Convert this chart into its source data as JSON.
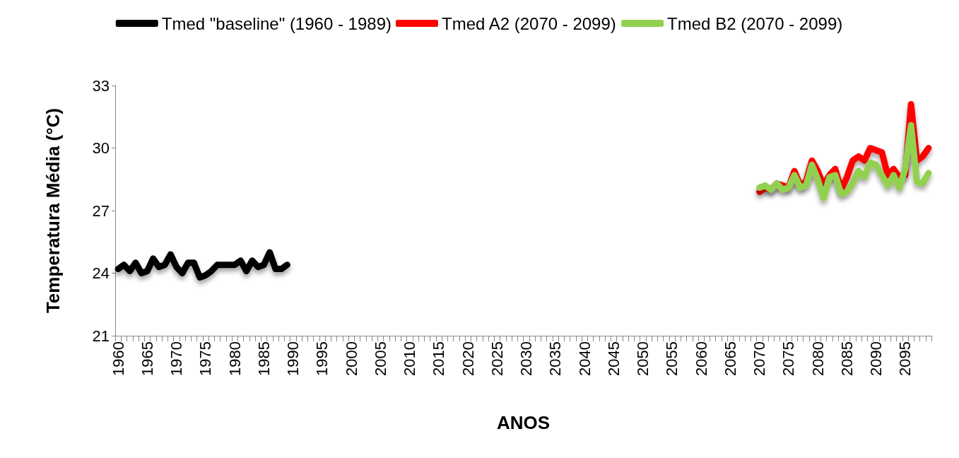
{
  "chart_data": {
    "type": "line",
    "xlabel": "ANOS",
    "ylabel": "Temperatura Média (°C)",
    "legend": "top",
    "grid": false,
    "marker": "none",
    "line_style": "solid",
    "ylim": [
      21,
      33
    ],
    "yticks": [
      21,
      24,
      27,
      30,
      33
    ],
    "categories": [
      "1960",
      null,
      null,
      null,
      null,
      "1965",
      null,
      null,
      null,
      null,
      "1970",
      null,
      null,
      null,
      null,
      "1975",
      null,
      null,
      null,
      null,
      "1980",
      null,
      null,
      null,
      null,
      "1985",
      null,
      null,
      null,
      null,
      "1990",
      null,
      null,
      null,
      null,
      "1995",
      null,
      null,
      null,
      null,
      "2000",
      null,
      null,
      null,
      null,
      "2005",
      null,
      null,
      null,
      null,
      "2010",
      null,
      null,
      null,
      null,
      "2015",
      null,
      null,
      null,
      null,
      "2020",
      null,
      null,
      null,
      null,
      "2025",
      null,
      null,
      null,
      null,
      "2030",
      null,
      null,
      null,
      null,
      "2035",
      null,
      null,
      null,
      null,
      "2040",
      null,
      null,
      null,
      null,
      "2045",
      null,
      null,
      null,
      null,
      "2050",
      null,
      null,
      null,
      null,
      "2055",
      null,
      null,
      null,
      null,
      "2060",
      null,
      null,
      null,
      null,
      "2065",
      null,
      null,
      null,
      null,
      "2070",
      null,
      null,
      null,
      null,
      "2075",
      null,
      null,
      null,
      null,
      "2080",
      null,
      null,
      null,
      null,
      "2085",
      null,
      null,
      null,
      null,
      "2090",
      null,
      null,
      null,
      null,
      "2095",
      null,
      null,
      null,
      null
    ],
    "series": [
      {
        "name": "Tmed \"baseline\" (1960 - 1989)",
        "color": "#000000",
        "values": [
          24.2,
          24.4,
          24.1,
          24.5,
          24.0,
          24.1,
          24.7,
          24.3,
          24.4,
          24.9,
          24.3,
          24.0,
          24.5,
          24.5,
          23.8,
          23.9,
          24.1,
          24.4,
          24.4,
          24.4,
          24.4,
          24.6,
          24.1,
          24.6,
          24.3,
          24.4,
          25.0,
          24.2,
          24.2,
          24.4,
          null,
          null,
          null,
          null,
          null,
          null,
          null,
          null,
          null,
          null,
          null,
          null,
          null,
          null,
          null,
          null,
          null,
          null,
          null,
          null,
          null,
          null,
          null,
          null,
          null,
          null,
          null,
          null,
          null,
          null,
          null,
          null,
          null,
          null,
          null,
          null,
          null,
          null,
          null,
          null,
          null,
          null,
          null,
          null,
          null,
          null,
          null,
          null,
          null,
          null,
          null,
          null,
          null,
          null,
          null,
          null,
          null,
          null,
          null,
          null,
          null,
          null,
          null,
          null,
          null,
          null,
          null,
          null,
          null,
          null,
          null,
          null,
          null,
          null,
          null,
          null,
          null,
          null,
          null,
          null,
          null,
          null,
          null,
          null,
          null,
          null,
          null,
          null,
          null,
          null,
          null,
          null,
          null,
          null,
          null,
          null,
          null,
          null,
          null,
          null,
          null,
          null,
          null,
          null,
          null,
          null,
          null,
          null,
          null,
          null
        ]
      },
      {
        "name": "Tmed A2 (2070 - 2099)",
        "color": "#ff0000",
        "values": [
          null,
          null,
          null,
          null,
          null,
          null,
          null,
          null,
          null,
          null,
          null,
          null,
          null,
          null,
          null,
          null,
          null,
          null,
          null,
          null,
          null,
          null,
          null,
          null,
          null,
          null,
          null,
          null,
          null,
          null,
          null,
          null,
          null,
          null,
          null,
          null,
          null,
          null,
          null,
          null,
          null,
          null,
          null,
          null,
          null,
          null,
          null,
          null,
          null,
          null,
          null,
          null,
          null,
          null,
          null,
          null,
          null,
          null,
          null,
          null,
          null,
          null,
          null,
          null,
          null,
          null,
          null,
          null,
          null,
          null,
          null,
          null,
          null,
          null,
          null,
          null,
          null,
          null,
          null,
          null,
          null,
          null,
          null,
          null,
          null,
          null,
          null,
          null,
          null,
          null,
          null,
          null,
          null,
          null,
          null,
          null,
          null,
          null,
          null,
          null,
          null,
          null,
          null,
          null,
          null,
          null,
          null,
          null,
          null,
          null,
          27.9,
          28.1,
          28.0,
          28.3,
          28.2,
          28.1,
          28.9,
          28.2,
          28.4,
          29.4,
          28.9,
          28.2,
          28.7,
          29.0,
          28.0,
          28.6,
          29.4,
          29.6,
          29.4,
          30.0,
          29.9,
          29.8,
          28.7,
          29.0,
          28.6,
          28.7,
          32.1,
          29.4,
          29.6,
          30.0
        ]
      },
      {
        "name": "Tmed B2 (2070 - 2099)",
        "color": "#92d050",
        "values": [
          null,
          null,
          null,
          null,
          null,
          null,
          null,
          null,
          null,
          null,
          null,
          null,
          null,
          null,
          null,
          null,
          null,
          null,
          null,
          null,
          null,
          null,
          null,
          null,
          null,
          null,
          null,
          null,
          null,
          null,
          null,
          null,
          null,
          null,
          null,
          null,
          null,
          null,
          null,
          null,
          null,
          null,
          null,
          null,
          null,
          null,
          null,
          null,
          null,
          null,
          null,
          null,
          null,
          null,
          null,
          null,
          null,
          null,
          null,
          null,
          null,
          null,
          null,
          null,
          null,
          null,
          null,
          null,
          null,
          null,
          null,
          null,
          null,
          null,
          null,
          null,
          null,
          null,
          null,
          null,
          null,
          null,
          null,
          null,
          null,
          null,
          null,
          null,
          null,
          null,
          null,
          null,
          null,
          null,
          null,
          null,
          null,
          null,
          null,
          null,
          null,
          null,
          null,
          null,
          null,
          null,
          null,
          null,
          null,
          null,
          28.1,
          28.2,
          28.0,
          28.3,
          28.0,
          28.1,
          28.7,
          28.1,
          28.2,
          29.2,
          28.5,
          27.6,
          28.6,
          28.7,
          27.8,
          27.9,
          28.3,
          28.9,
          28.6,
          29.3,
          29.2,
          28.7,
          28.2,
          28.7,
          28.1,
          29.0,
          31.1,
          28.4,
          28.3,
          28.8
        ]
      }
    ]
  }
}
